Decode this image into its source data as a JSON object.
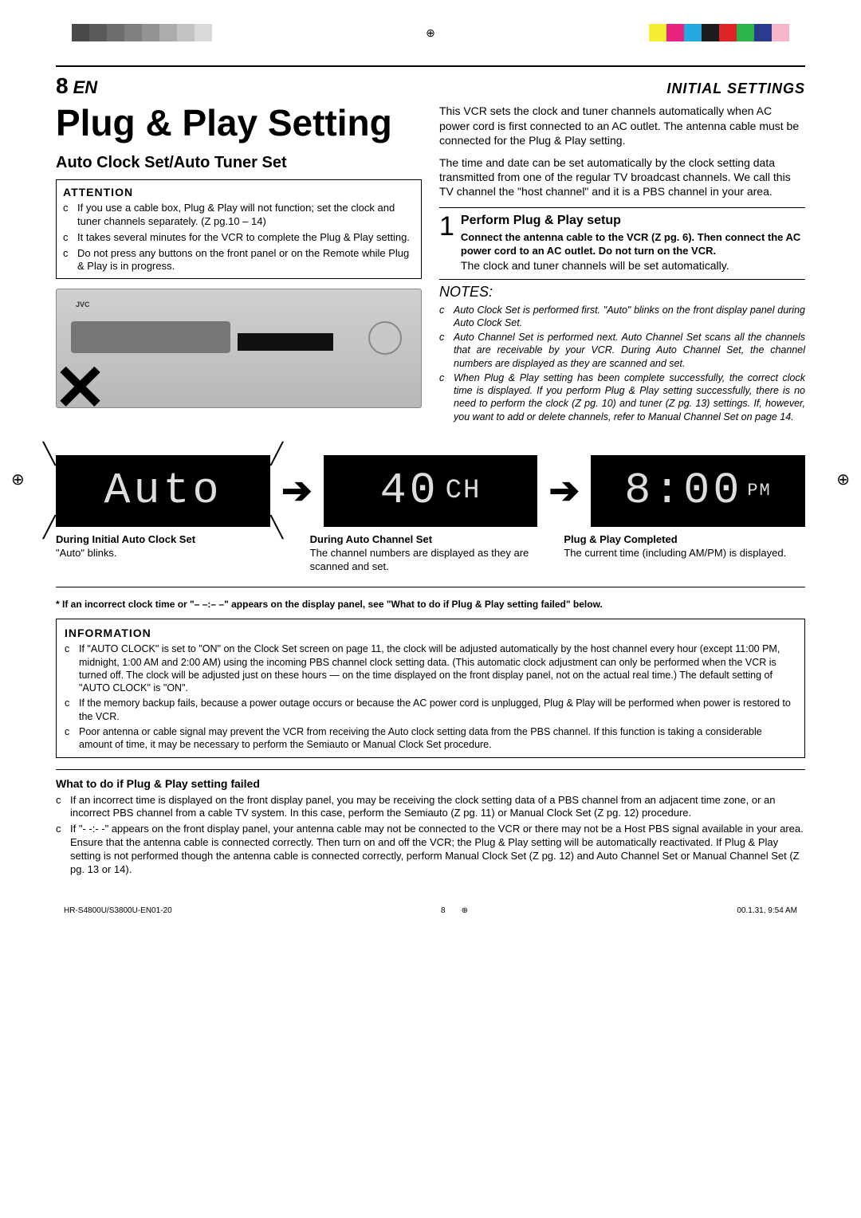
{
  "regmarks": {
    "gray_colors": [
      "#4a4a4a",
      "#5a5a5a",
      "#6e6e6e",
      "#808080",
      "#949494",
      "#acacac",
      "#c3c3c3",
      "#d9d9d9"
    ],
    "cmyk_colors": [
      "#f8ed35",
      "#e8237f",
      "#27a7df",
      "#1c1c1c",
      "#de2428",
      "#2cb34a",
      "#2a3a8f",
      "#f6b6c9"
    ]
  },
  "header": {
    "page_number": "8",
    "lang": "EN",
    "section": "INITIAL SETTINGS"
  },
  "title": "Plug & Play Setting",
  "subtitle": "Auto Clock Set/Auto Tuner Set",
  "attention": {
    "hdr": "ATTENTION",
    "items": [
      "If you use a cable box, Plug & Play will not function; set the clock and tuner channels separately. (Z pg.10 – 14)",
      "It takes several minutes for the VCR to complete the Plug & Play setting.",
      "Do not press any buttons on the front panel or on the Remote while Plug & Play is in progress."
    ]
  },
  "intro": [
    "This VCR sets the clock and tuner channels automatically when AC power cord is first connected to an AC outlet. The antenna cable must be connected for the Plug & Play setting.",
    "The time and date can be set automatically by the clock setting data transmitted from one of the regular TV broadcast channels. We call this TV channel the \"host channel\" and it is a PBS channel in your area."
  ],
  "step": {
    "num": "1",
    "title": "Perform Plug & Play setup",
    "bold": "Connect the antenna cable to the VCR (Z pg. 6). Then connect the AC power cord to an AC outlet. Do not turn on the VCR.",
    "body": "The clock and tuner channels will be set automatically."
  },
  "notes": {
    "hdr": "NOTES:",
    "items": [
      "Auto Clock Set is performed first. \"Auto\" blinks on the front display panel during Auto Clock Set.",
      "Auto Channel Set is performed next. Auto Channel Set scans all the channels that are receivable by your VCR. During Auto Channel Set, the channel numbers are displayed as they are scanned and set.",
      "When Plug & Play setting has been complete successfully, the correct clock time is displayed. If you perform Plug & Play setting successfully, there is no need to perform the clock (Z pg. 10) and tuner (Z pg. 13) settings. If, however, you want to add or delete channels, refer to Manual Channel Set on page 14."
    ]
  },
  "lcd": {
    "auto": "Auto",
    "ch_num": "40",
    "ch_label": "CH",
    "time": "8:00",
    "pm": "PM"
  },
  "captions": {
    "c1_title": "During Initial Auto Clock Set",
    "c1_body": "\"Auto\" blinks.",
    "c2_title": "During Auto Channel Set",
    "c2_body": "The channel numbers are displayed as they are scanned and set.",
    "c3_title": "Plug & Play Completed",
    "c3_body": "The current time (including AM/PM) is displayed."
  },
  "asterisk": "* If an incorrect clock time or \"– –:– –\" appears on the display panel, see \"What to do if Plug & Play setting failed\" below.",
  "information": {
    "hdr": "INFORMATION",
    "items": [
      "If \"AUTO CLOCK\" is set to \"ON\" on the Clock Set screen on page 11, the clock will be adjusted automatically by the host channel every hour (except 11:00 PM, midnight, 1:00 AM and 2:00 AM) using the incoming PBS channel clock setting data. (This automatic clock adjustment can only be performed when the VCR is turned off. The clock will be adjusted just on these hours — on the time displayed on the front display panel, not on the actual real time.) The default setting of \"AUTO CLOCK\" is \"ON\".",
      "If the memory backup fails, because a power outage occurs or because the AC power cord is unplugged, Plug & Play will be performed when power is restored to the VCR.",
      "Poor antenna or cable signal may prevent the VCR from receiving the Auto clock setting data from the PBS channel. If this function is taking a considerable amount of time, it may be necessary to perform the Semiauto or Manual Clock Set procedure."
    ]
  },
  "failed": {
    "hdr": "What to do if Plug & Play setting failed",
    "items": [
      "If an incorrect time is displayed on the front display panel, you may be receiving the clock setting data of a PBS channel from an adjacent time zone, or an incorrect PBS channel from a cable TV system. In this case, perform the Semiauto (Z pg. 11) or Manual Clock Set (Z pg. 12) procedure.",
      "If \"- -:- -\" appears on the front display panel, your antenna cable may not be connected to the VCR or there may not be a Host PBS signal available in your area. Ensure that the antenna cable is connected correctly. Then turn on and off the VCR; the Plug & Play setting will be automatically reactivated. If Plug & Play setting is not performed though the antenna cable is connected correctly, perform Manual Clock Set (Z pg. 12) and Auto Channel Set or Manual Channel Set (Z pg. 13 or 14)."
    ]
  },
  "footer": {
    "left": "HR-S4800U/S3800U-EN01-20",
    "page": "8",
    "right": "00.1.31, 9:54 AM"
  }
}
